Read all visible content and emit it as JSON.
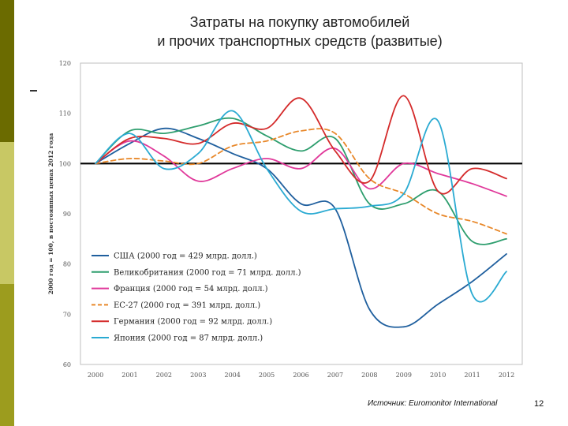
{
  "slide": {
    "title_line1": "Затраты на покупку автомобилей",
    "title_line2": "и прочих транспортных средств (развитые)",
    "source": "Источник: Euromonitor International",
    "page_number": "12"
  },
  "colors": {
    "sidebar_dark": "#6b6b00",
    "sidebar_light": "#c8c864",
    "sidebar_mid": "#9c9c1e"
  },
  "chart_data": {
    "type": "line",
    "title": "",
    "ylabel": "2000 год = 100, в постоянных ценах 2012 года",
    "xlabel": "",
    "x": [
      2000,
      2001,
      2002,
      2003,
      2004,
      2005,
      2006,
      2007,
      2008,
      2009,
      2010,
      2011,
      2012
    ],
    "x_tick_labels": [
      "2000",
      "2001",
      "2002",
      "2003",
      "2004",
      "2005",
      "2006",
      "2007",
      "2008",
      "2009",
      "2010",
      "2011",
      "2012"
    ],
    "ylim": [
      60,
      120
    ],
    "y_ticks": [
      60,
      70,
      80,
      90,
      100,
      110,
      120
    ],
    "y_tick_labels": [
      "60",
      "70",
      "80",
      "90",
      "100",
      "110",
      "120"
    ],
    "reference_line": 100,
    "grid": false,
    "legend_position": "bottom-left",
    "series": [
      {
        "name": "США (2000 год = 429 млрд. долл.)",
        "color": "#1f5f9e",
        "dash": "solid",
        "values": [
          100,
          104,
          107,
          105,
          102,
          99,
          92,
          91,
          71,
          67.5,
          72,
          76.5,
          82
        ]
      },
      {
        "name": "Великобритания (2000 год = 71 млрд. долл.)",
        "color": "#2e9e6e",
        "dash": "solid",
        "values": [
          100,
          106.5,
          106,
          107.5,
          109,
          105.5,
          102.5,
          105,
          92,
          92,
          94.5,
          84.5,
          85
        ]
      },
      {
        "name": "Франция (2000 год = 54 млрд. долл.)",
        "color": "#e0389a",
        "dash": "solid",
        "values": [
          100,
          104.5,
          101.5,
          96.5,
          99,
          101,
          99,
          103,
          95,
          100,
          98,
          96,
          93.5
        ]
      },
      {
        "name": "ЕС-27 (2000 год = 391 млрд. долл.)",
        "color": "#e8882a",
        "dash": "dashed",
        "values": [
          100,
          101,
          100.5,
          100,
          103.5,
          104.5,
          106.5,
          106,
          97,
          94,
          90,
          88.5,
          86
        ]
      },
      {
        "name": "Германия (2000 год = 92 млрд. долл.)",
        "color": "#d42a2a",
        "dash": "solid",
        "values": [
          100,
          105,
          105,
          104,
          108,
          107,
          113,
          102.5,
          96.5,
          113.5,
          94.5,
          99,
          97
        ]
      },
      {
        "name": "Япония (2000 год = 87 млрд. долл.)",
        "color": "#2aaad2",
        "dash": "solid",
        "values": [
          100,
          106,
          99,
          102,
          110.5,
          99,
          90.5,
          91,
          91.5,
          94,
          108.5,
          74,
          78.5
        ]
      }
    ]
  }
}
